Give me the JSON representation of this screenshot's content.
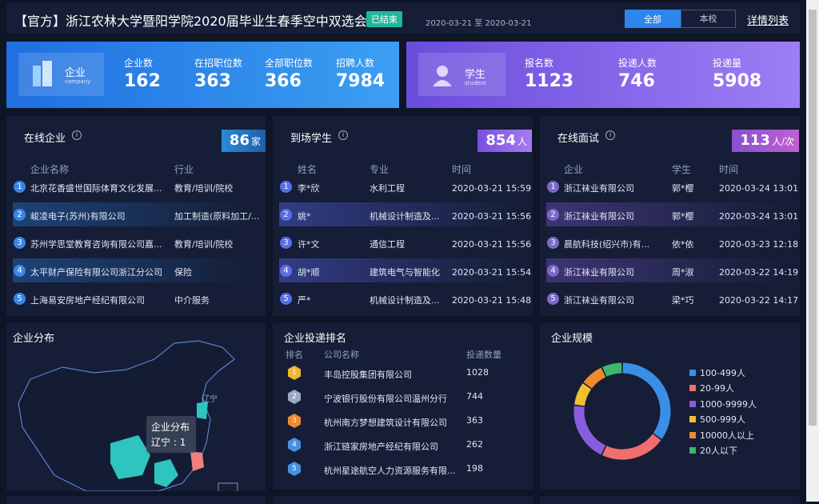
{
  "header": {
    "title": "【官方】浙江农林大学暨阳学院2020届毕业生春季空中双选会",
    "status": "已结束",
    "date_range": "2020-03-21 至 2020-03-21",
    "tabs": [
      "全部",
      "本校"
    ],
    "link": "详情列表"
  },
  "company_card": {
    "label": "企业",
    "sublabel": "company",
    "stats": [
      {
        "label": "企业数",
        "value": 162
      },
      {
        "label": "在招职位数",
        "value": 363
      },
      {
        "label": "全部职位数",
        "value": 366
      },
      {
        "label": "招聘人数",
        "value": 7984
      }
    ]
  },
  "student_card": {
    "label": "学生",
    "sublabel": "student",
    "stats": [
      {
        "label": "报名数",
        "value": 1123
      },
      {
        "label": "投递人数",
        "value": 746
      },
      {
        "label": "投递量",
        "value": 5908
      }
    ]
  },
  "online_companies": {
    "title": "在线企业",
    "count": 86,
    "unit": "家",
    "columns": [
      "企业名称",
      "行业"
    ],
    "rows": [
      [
        "北京花香盛世国际体育文化发展...",
        "教育/培训/院校"
      ],
      [
        "峻凌电子(苏州)有限公司",
        "加工制造(原料加工/..."
      ],
      [
        "苏州学思堂教育咨询有限公司嘉...",
        "教育/培训/院校"
      ],
      [
        "太平财产保险有限公司浙江分公司",
        "保险"
      ],
      [
        "上海易安房地产经纪有限公司",
        "中介服务"
      ]
    ]
  },
  "arrived_students": {
    "title": "到场学生",
    "count": 854,
    "unit": "人",
    "columns": [
      "姓名",
      "专业",
      "时间"
    ],
    "rows": [
      [
        "李*欣",
        "水利工程",
        "2020-03-21 15:59"
      ],
      [
        "姚*",
        "机械设计制造及...",
        "2020-03-21 15:56"
      ],
      [
        "许*文",
        "通信工程",
        "2020-03-21 15:56"
      ],
      [
        "胡*顺",
        "建筑电气与智能化",
        "2020-03-21 15:54"
      ],
      [
        "严*",
        "机械设计制造及...",
        "2020-03-21 15:48"
      ]
    ]
  },
  "interviews": {
    "title": "在线面试",
    "count": 113,
    "unit": "人/次",
    "columns": [
      "企业",
      "学生",
      "时间"
    ],
    "rows": [
      [
        "浙江袜业有限公司",
        "郭*樱",
        "2020-03-24 13:01"
      ],
      [
        "浙江袜业有限公司",
        "郭*樱",
        "2020-03-24 13:01"
      ],
      [
        "晨航科技(绍兴市)有...",
        "依*依",
        "2020-03-23 12:18"
      ],
      [
        "浙江袜业有限公司",
        "周*淑",
        "2020-03-22 14:19"
      ],
      [
        "浙江袜业有限公司",
        "梁*巧",
        "2020-03-22 14:17"
      ]
    ]
  },
  "map": {
    "title": "企业分布",
    "region_label": "辽宁",
    "tooltip": {
      "title": "企业分布",
      "region": "辽宁",
      "value": 1
    }
  },
  "ranking": {
    "title": "企业投递排名",
    "columns": [
      "排名",
      "公司名称",
      "投递数量"
    ],
    "rows": [
      {
        "rank": 1,
        "name": "丰岛控股集团有限公司",
        "count": 1028
      },
      {
        "rank": 2,
        "name": "宁波银行股份有限公司温州分行",
        "count": 744
      },
      {
        "rank": 3,
        "name": "杭州南方梦想建筑设计有限公司",
        "count": 363
      },
      {
        "rank": 4,
        "name": "浙江链家房地产经纪有限公司",
        "count": 262
      },
      {
        "rank": 5,
        "name": "杭州星途航空人力资源服务有限...",
        "count": 198
      }
    ]
  },
  "company_scale": {
    "type": "pie",
    "title": "企业规模",
    "categories": [
      "100-499人",
      "20-99人",
      "1000-9999人",
      "500-999人",
      "10000人以上",
      "20人以下"
    ],
    "colors": [
      "#3a8ee6",
      "#f06e6e",
      "#8a5ce0",
      "#f0c030",
      "#f08a30",
      "#3cb86a"
    ],
    "values": [
      35,
      22,
      20,
      8,
      8,
      7
    ]
  }
}
